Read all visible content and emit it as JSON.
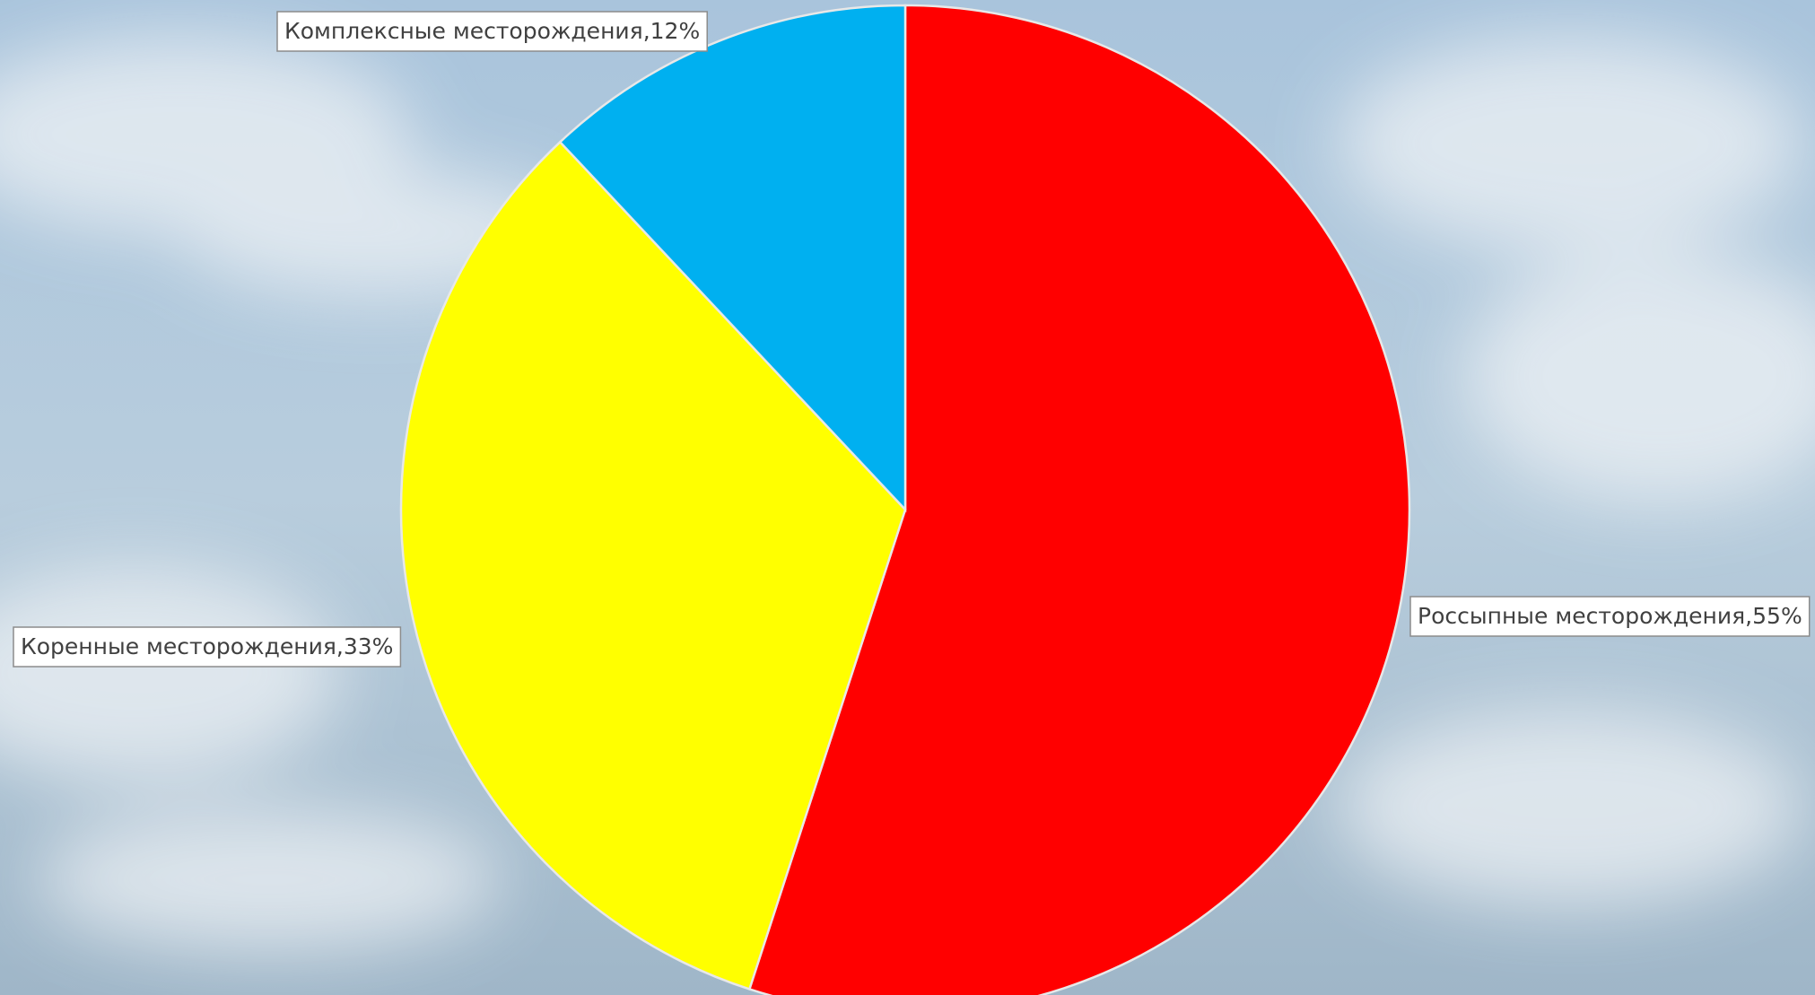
{
  "chart_data": {
    "type": "pie",
    "values": [
      55,
      33,
      12
    ],
    "value_labels": [
      "Россыпные месторождения,55%",
      "Коренные месторождения,33%",
      "Комплексные месторождения,12%"
    ],
    "colors": [
      "#ff0000",
      "#ffff00",
      "#00b0f0"
    ]
  }
}
